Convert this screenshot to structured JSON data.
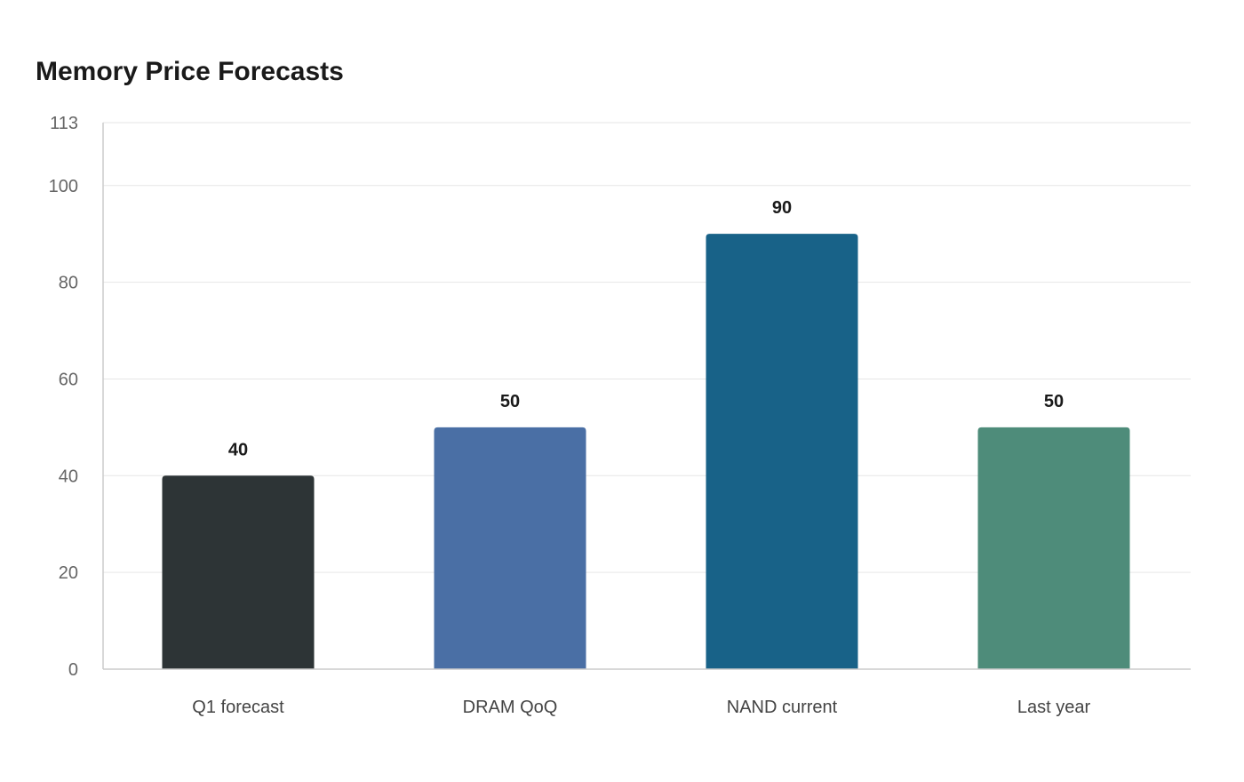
{
  "chart_data": {
    "type": "bar",
    "title": "Memory Price Forecasts",
    "xlabel": "",
    "ylabel": "",
    "categories": [
      "Q1 forecast",
      "DRAM QoQ",
      "NAND current",
      "Last year"
    ],
    "values": [
      40,
      50,
      90,
      50
    ],
    "colors": [
      "#2d3436",
      "#4a6fa5",
      "#186288",
      "#4e8c7a"
    ],
    "ylim": [
      0,
      113
    ],
    "yticks": [
      0,
      20,
      40,
      60,
      80,
      100,
      113
    ],
    "grid": true,
    "legend": "none"
  }
}
